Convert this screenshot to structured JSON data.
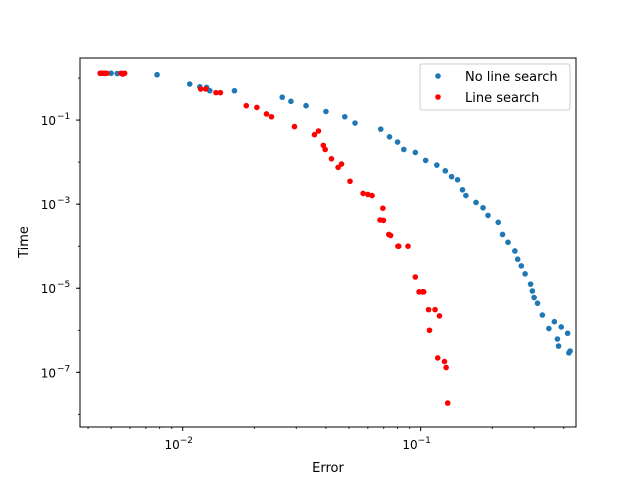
{
  "chart_data": {
    "type": "scatter",
    "title": "",
    "xlabel": "Error",
    "ylabel": "Time",
    "xscale": "log",
    "yscale": "log",
    "xlim": [
      0.0037,
      0.45
    ],
    "ylim": [
      5e-09,
      3.0
    ],
    "x_ticks": [
      {
        "value": 0.01,
        "base": "10",
        "exp": "−2"
      },
      {
        "value": 0.1,
        "base": "10",
        "exp": "−1"
      }
    ],
    "y_ticks": [
      {
        "value": 1e-07,
        "base": "10",
        "exp": "−7"
      },
      {
        "value": 1e-05,
        "base": "10",
        "exp": "−5"
      },
      {
        "value": 0.001,
        "base": "10",
        "exp": "−3"
      },
      {
        "value": 0.1,
        "base": "10",
        "exp": "−1"
      }
    ],
    "grid": false,
    "legend_position": "top-right",
    "series": [
      {
        "name": "No line search",
        "color": "#1f77b4",
        "points": [
          [
            0.0045,
            1.3
          ],
          [
            0.0046,
            1.3
          ],
          [
            0.0047,
            1.3
          ],
          [
            0.005,
            1.3
          ],
          [
            0.0053,
            1.28
          ],
          [
            0.0056,
            1.28
          ],
          [
            0.0078,
            1.2
          ],
          [
            0.0107,
            0.72
          ],
          [
            0.0118,
            0.62
          ],
          [
            0.0126,
            0.6
          ],
          [
            0.013,
            0.5
          ],
          [
            0.0165,
            0.5
          ],
          [
            0.0262,
            0.35
          ],
          [
            0.0285,
            0.28
          ],
          [
            0.033,
            0.22
          ],
          [
            0.04,
            0.16
          ],
          [
            0.048,
            0.12
          ],
          [
            0.053,
            0.085
          ],
          [
            0.068,
            0.061
          ],
          [
            0.074,
            0.04
          ],
          [
            0.08,
            0.03
          ],
          [
            0.085,
            0.02
          ],
          [
            0.095,
            0.017
          ],
          [
            0.105,
            0.011
          ],
          [
            0.117,
            0.0085
          ],
          [
            0.127,
            0.0062
          ],
          [
            0.135,
            0.0045
          ],
          [
            0.143,
            0.0038
          ],
          [
            0.15,
            0.0022
          ],
          [
            0.155,
            0.0016
          ],
          [
            0.171,
            0.0011
          ],
          [
            0.183,
            0.00082
          ],
          [
            0.192,
            0.00054
          ],
          [
            0.212,
            0.00037
          ],
          [
            0.221,
            0.00019
          ],
          [
            0.233,
            0.000124
          ],
          [
            0.249,
            7.7e-05
          ],
          [
            0.256,
            4.9e-05
          ],
          [
            0.265,
            3.4e-05
          ],
          [
            0.275,
            2.2e-05
          ],
          [
            0.29,
            1.25e-05
          ],
          [
            0.295,
            8.6e-06
          ],
          [
            0.3,
            6e-06
          ],
          [
            0.31,
            4.4e-06
          ],
          [
            0.325,
            2.3e-06
          ],
          [
            0.346,
            1.1e-06
          ],
          [
            0.365,
            1.6e-06
          ],
          [
            0.376,
            6.2e-07
          ],
          [
            0.38,
            4.2e-07
          ],
          [
            0.39,
            1.2e-06
          ],
          [
            0.415,
            8.5e-07
          ],
          [
            0.42,
            2.9e-07
          ],
          [
            0.425,
            3.2e-07
          ]
        ]
      },
      {
        "name": "Line search",
        "color": "#ff0000",
        "points": [
          [
            0.0045,
            1.3
          ],
          [
            0.00455,
            1.3
          ],
          [
            0.0046,
            1.3
          ],
          [
            0.0047,
            1.3
          ],
          [
            0.0048,
            1.3
          ],
          [
            0.0055,
            1.3
          ],
          [
            0.0056,
            1.25
          ],
          [
            0.0057,
            1.3
          ],
          [
            0.0119,
            0.55
          ],
          [
            0.0125,
            0.55
          ],
          [
            0.0138,
            0.45
          ],
          [
            0.0144,
            0.45
          ],
          [
            0.0185,
            0.22
          ],
          [
            0.0205,
            0.2
          ],
          [
            0.0225,
            0.14
          ],
          [
            0.0236,
            0.12
          ],
          [
            0.0295,
            0.07
          ],
          [
            0.0358,
            0.045
          ],
          [
            0.0372,
            0.055
          ],
          [
            0.039,
            0.025
          ],
          [
            0.0397,
            0.02
          ],
          [
            0.0422,
            0.012
          ],
          [
            0.045,
            0.0075
          ],
          [
            0.0465,
            0.009
          ],
          [
            0.0505,
            0.0035
          ],
          [
            0.0573,
            0.0018
          ],
          [
            0.06,
            0.0017
          ],
          [
            0.0625,
            0.0016
          ],
          [
            0.0675,
            0.00042
          ],
          [
            0.0698,
            0.00041
          ],
          [
            0.0694,
            0.0008
          ],
          [
            0.0735,
            0.00019
          ],
          [
            0.0748,
            0.00018
          ],
          [
            0.0803,
            0.0001
          ],
          [
            0.0809,
            0.0001
          ],
          [
            0.0885,
            0.0001
          ],
          [
            0.095,
            1.85e-05
          ],
          [
            0.0985,
            8.2e-06
          ],
          [
            0.102,
            8.2e-06
          ],
          [
            0.103,
            8.2e-06
          ],
          [
            0.108,
            3.1e-06
          ],
          [
            0.115,
            3.1e-06
          ],
          [
            0.12,
            2.2e-06
          ],
          [
            0.109,
            1e-06
          ],
          [
            0.118,
            2.2e-07
          ],
          [
            0.126,
            1.8e-07
          ],
          [
            0.128,
            1.3e-07
          ],
          [
            0.13,
            1.85e-08
          ]
        ]
      }
    ]
  }
}
